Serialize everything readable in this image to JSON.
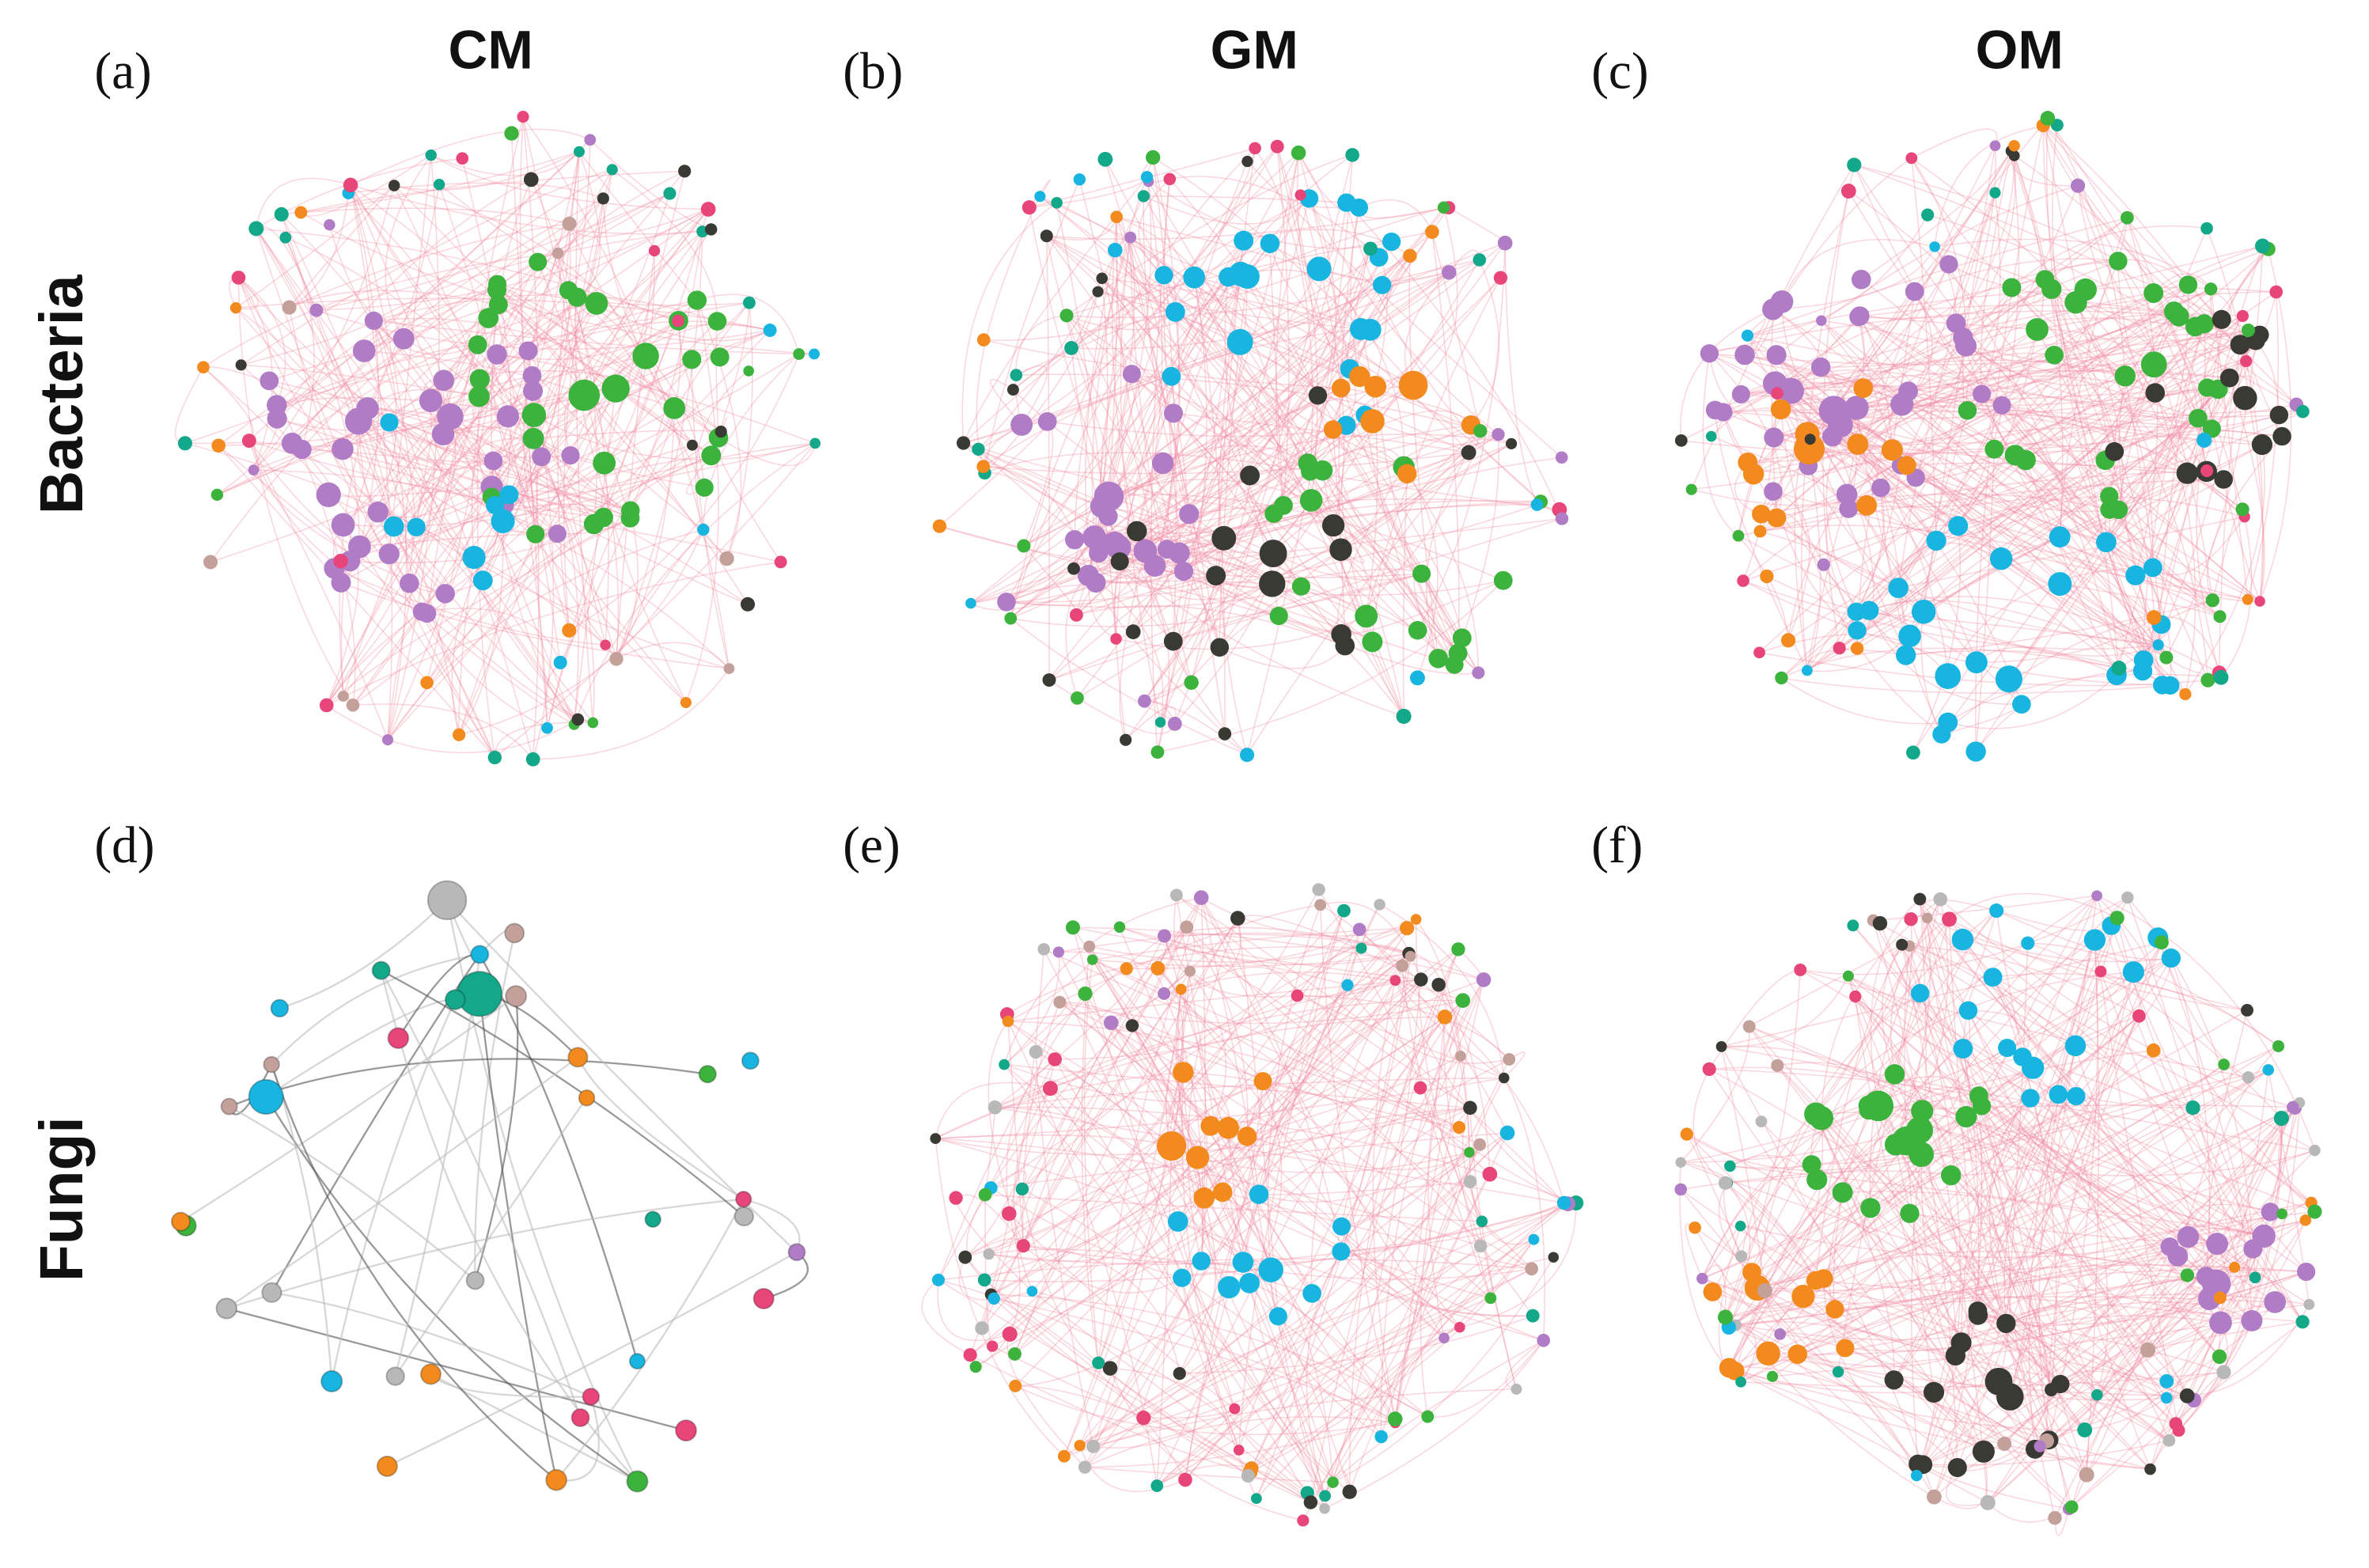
{
  "columns": [
    "CM",
    "GM",
    "OM"
  ],
  "rows": [
    "Bacteria",
    "Fungi"
  ],
  "panels": [
    "(a)",
    "(b)",
    "(c)",
    "(d)",
    "(e)",
    "(f)"
  ]
}
